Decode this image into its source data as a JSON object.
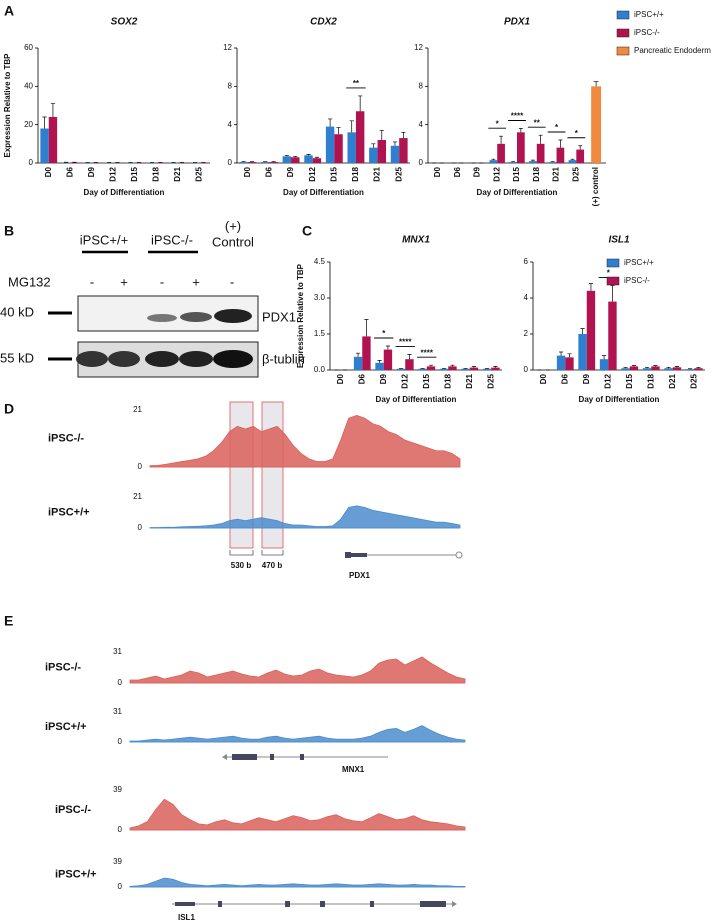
{
  "panel_labels": [
    "A",
    "B",
    "C",
    "D",
    "E"
  ],
  "chart_data": [
    {
      "type": "bar",
      "title": "SOX2",
      "y_label": "Expression Relative to TBP",
      "x_label": "Day of Differentiation",
      "categories": [
        "D0",
        "D6",
        "D9",
        "D12",
        "D15",
        "D18",
        "D21",
        "D25"
      ],
      "ylim": [
        0,
        60
      ],
      "yticks": [
        0,
        20,
        40,
        60
      ],
      "series": [
        {
          "color": "#2f7fd1",
          "values": [
            18,
            0.3,
            0.2,
            0.2,
            0.2,
            0.2,
            0.2,
            0.2
          ],
          "errors": [
            6,
            0.1,
            0.1,
            0.1,
            0.1,
            0.1,
            0.1,
            0.1
          ]
        },
        {
          "color": "#b01350",
          "values": [
            24,
            0.3,
            0.2,
            0.2,
            0.2,
            0.2,
            0.2,
            0.2
          ],
          "errors": [
            7,
            0.1,
            0.1,
            0.1,
            0.1,
            0.1,
            0.1,
            0.1
          ]
        }
      ],
      "annotations": []
    },
    {
      "type": "bar",
      "title": "CDX2",
      "x_label": "Day of Differentiation",
      "categories": [
        "D0",
        "D6",
        "D9",
        "D12",
        "D15",
        "D18",
        "D21",
        "D25"
      ],
      "ylim": [
        0,
        12
      ],
      "yticks": [
        0,
        4,
        8,
        12
      ],
      "series": [
        {
          "color": "#2f7fd1",
          "values": [
            0.1,
            0.1,
            0.7,
            0.8,
            3.8,
            3.2,
            1.6,
            1.8
          ],
          "errors": [
            0.05,
            0.05,
            0.1,
            0.1,
            0.8,
            1.2,
            0.4,
            0.4
          ]
        },
        {
          "color": "#b01350",
          "values": [
            0.1,
            0.1,
            0.6,
            0.5,
            3.0,
            5.4,
            2.4,
            2.6
          ],
          "errors": [
            0.05,
            0.05,
            0.1,
            0.1,
            0.7,
            1.6,
            1.0,
            0.6
          ]
        }
      ],
      "annotations": [
        {
          "text": "**",
          "at": "D18"
        }
      ]
    },
    {
      "type": "bar",
      "title": "PDX1",
      "x_label": "Day of Differentiation",
      "categories": [
        "D0",
        "D6",
        "D9",
        "D12",
        "D15",
        "D18",
        "D21",
        "D25",
        "(+) control"
      ],
      "ylim": [
        0,
        12
      ],
      "yticks": [
        0,
        4,
        8,
        12
      ],
      "series": [
        {
          "name": "iPSC+/+",
          "color": "#2f7fd1",
          "values": [
            0,
            0,
            0,
            0.3,
            0.1,
            0.2,
            0.1,
            0.3,
            null
          ],
          "errors": [
            0,
            0,
            0,
            0.1,
            0.05,
            0.1,
            0.05,
            0.1,
            null
          ]
        },
        {
          "name": "iPSC-/-",
          "color": "#b01350",
          "values": [
            0,
            0,
            0,
            2.0,
            3.2,
            2.0,
            1.6,
            1.4,
            null
          ],
          "errors": [
            0,
            0,
            0,
            0.8,
            0.4,
            0.9,
            0.8,
            0.4,
            null
          ]
        },
        {
          "name": "Pancreatic Endoderm",
          "color": "#ef8a3e",
          "values": [
            null,
            null,
            null,
            null,
            null,
            null,
            null,
            null,
            8.0
          ],
          "errors": [
            null,
            null,
            null,
            null,
            null,
            null,
            null,
            null,
            0.5
          ]
        }
      ],
      "annotations": [
        {
          "text": "*",
          "at": "D12"
        },
        {
          "text": "****",
          "at": "D15"
        },
        {
          "text": "**",
          "at": "D18"
        },
        {
          "text": "*",
          "at": "D21"
        },
        {
          "text": "*",
          "at": "D25"
        }
      ]
    },
    {
      "type": "bar",
      "title": "MNX1",
      "y_label": "Expression Relative to TBP",
      "x_label": "Day of Differentiation",
      "categories": [
        "D0",
        "D6",
        "D9",
        "D12",
        "D15",
        "D18",
        "D21",
        "D25"
      ],
      "ylim": [
        0,
        4.5
      ],
      "yticks": [
        {
          "value": 0,
          "label": "0.0"
        },
        1.5,
        {
          "value": 3,
          "label": "3.0"
        },
        4.5
      ],
      "series": [
        {
          "color": "#2f7fd1",
          "values": [
            0,
            0.55,
            0.3,
            0.05,
            0.05,
            0.05,
            0.05,
            0.05
          ],
          "errors": [
            0,
            0.15,
            0.1,
            0.02,
            0.02,
            0.02,
            0.02,
            0.02
          ]
        },
        {
          "color": "#b01350",
          "values": [
            0,
            1.4,
            0.85,
            0.45,
            0.15,
            0.15,
            0.1,
            0.1
          ],
          "errors": [
            0,
            0.7,
            0.15,
            0.2,
            0.05,
            0.05,
            0.05,
            0.05
          ]
        }
      ],
      "annotations": [
        {
          "text": "*",
          "at": "D9"
        },
        {
          "text": "****",
          "at": "D12"
        },
        {
          "text": "****",
          "at": "D15"
        }
      ]
    },
    {
      "type": "bar",
      "title": "ISL1",
      "x_label": "Day of Differentiation",
      "categories": [
        "D0",
        "D6",
        "D9",
        "D12",
        "D15",
        "D18",
        "D21",
        "D25"
      ],
      "ylim": [
        0,
        6
      ],
      "yticks": [
        0,
        2,
        4,
        6
      ],
      "series": [
        {
          "name": "iPSC+/+",
          "color": "#2f7fd1",
          "values": [
            0,
            0.8,
            2.0,
            0.6,
            0.1,
            0.1,
            0.1,
            0.05
          ],
          "errors": [
            0,
            0.2,
            0.3,
            0.2,
            0.05,
            0.05,
            0.05,
            0.02
          ]
        },
        {
          "name": "iPSC-/-",
          "color": "#b01350",
          "values": [
            0,
            0.7,
            4.4,
            3.8,
            0.2,
            0.2,
            0.15,
            0.1
          ],
          "errors": [
            0,
            0.2,
            0.4,
            0.9,
            0.05,
            0.05,
            0.05,
            0.05
          ]
        }
      ],
      "annotations": [
        {
          "text": "*",
          "at": "D12"
        }
      ]
    },
    {
      "type": "area",
      "name": "iPSC-/-",
      "color": "#d9605a",
      "ylim": [
        0,
        21
      ],
      "yticks": [
        0,
        21
      ],
      "values": [
        0.5,
        0.6,
        1,
        1.5,
        2,
        2.5,
        3,
        4,
        6,
        9,
        13,
        15,
        14,
        15,
        13,
        14,
        15,
        12,
        8,
        5,
        3,
        2,
        2,
        3,
        10,
        18,
        19,
        18,
        16,
        15,
        13,
        12,
        10,
        9,
        8,
        7,
        6,
        6,
        5,
        3
      ]
    },
    {
      "type": "area",
      "name": "iPSC+/+",
      "color": "#4a8ccc",
      "ylim": [
        0,
        21
      ],
      "yticks": [
        0,
        21
      ],
      "values": [
        0.3,
        0.3,
        0.5,
        0.5,
        0.8,
        1,
        1.2,
        1.5,
        2,
        3,
        5,
        6,
        5,
        6,
        7,
        6,
        5,
        3,
        2,
        2,
        1.5,
        1,
        1,
        1.5,
        6,
        14,
        15,
        14,
        12,
        11,
        10,
        9,
        8,
        7,
        6,
        5,
        4,
        4,
        3,
        2
      ]
    },
    {
      "type": "area",
      "name": "iPSC-/-",
      "color": "#d9605a",
      "ylim": [
        0,
        31
      ],
      "yticks": [
        0,
        31
      ],
      "values": [
        3,
        3,
        5,
        7,
        4,
        6,
        8,
        12,
        10,
        6,
        8,
        10,
        12,
        9,
        7,
        6,
        10,
        13,
        9,
        7,
        8,
        12,
        14,
        10,
        8,
        7,
        6,
        8,
        12,
        20,
        23,
        24,
        18,
        22,
        26,
        20,
        15,
        10,
        6,
        4
      ]
    },
    {
      "type": "area",
      "name": "iPSC+/+",
      "color": "#4a8ccc",
      "ylim": [
        0,
        31
      ],
      "yticks": [
        0,
        31
      ],
      "values": [
        1,
        1,
        2,
        3,
        2,
        3,
        4,
        5,
        4,
        3,
        4,
        5,
        6,
        4,
        3,
        3,
        5,
        6,
        4,
        3,
        4,
        5,
        6,
        4,
        3,
        3,
        3,
        4,
        6,
        10,
        13,
        14,
        10,
        13,
        17,
        12,
        8,
        5,
        3,
        2
      ]
    },
    {
      "type": "area",
      "name": "iPSC-/-",
      "color": "#d9605a",
      "ylim": [
        0,
        39
      ],
      "yticks": [
        0,
        39
      ],
      "values": [
        2,
        4,
        8,
        20,
        30,
        25,
        15,
        10,
        6,
        5,
        8,
        10,
        7,
        6,
        9,
        12,
        10,
        8,
        11,
        14,
        12,
        9,
        10,
        13,
        15,
        11,
        9,
        8,
        12,
        16,
        13,
        10,
        11,
        14,
        10,
        8,
        7,
        6,
        4,
        3
      ]
    },
    {
      "type": "area",
      "name": "iPSC+/+",
      "color": "#4a8ccc",
      "ylim": [
        0,
        39
      ],
      "yticks": [
        0,
        39
      ],
      "values": [
        1,
        2,
        4,
        9,
        14,
        12,
        7,
        4,
        3,
        2,
        3,
        4,
        3,
        2,
        3,
        4,
        3,
        3,
        4,
        5,
        4,
        3,
        3,
        4,
        5,
        4,
        3,
        3,
        4,
        5,
        4,
        3,
        3,
        4,
        3,
        3,
        2,
        2,
        1,
        1
      ]
    }
  ],
  "blot": {
    "groups": [
      "iPSC+/+",
      "iPSC-/-"
    ],
    "control": [
      "(+)",
      "Control"
    ],
    "treatment_label": "MG132",
    "treatments": [
      "-",
      "+",
      "-",
      "+",
      "-"
    ],
    "markers": [
      "40 kD",
      "55 kD"
    ],
    "bands": [
      "PDX1",
      "β-tublin"
    ]
  },
  "genome": {
    "regions": [
      "530 b",
      "470 b"
    ],
    "genes": [
      "PDX1",
      "MNX1",
      "ISL1"
    ]
  }
}
